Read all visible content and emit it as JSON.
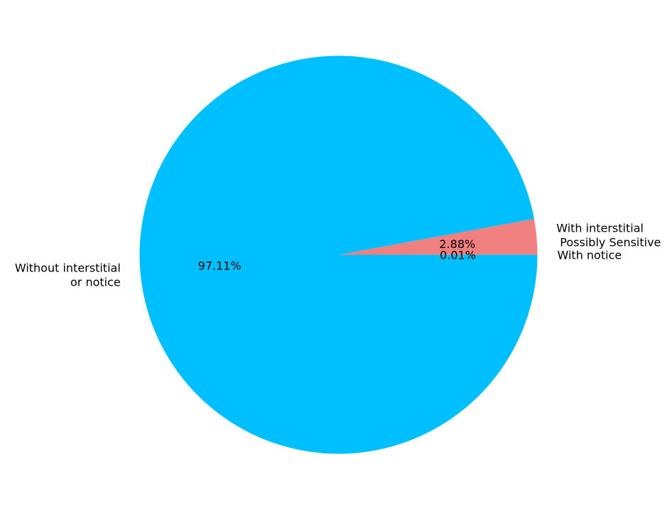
{
  "chart_data": {
    "type": "pie",
    "start_angle_deg": 0,
    "direction": "counterclockwise",
    "slices": [
      {
        "label": "With notice",
        "value": 0.01,
        "pct_label": "0.01%",
        "color": "#00BFFF"
      },
      {
        "label": "With interstitial\n Possibly Sensitive",
        "value": 2.88,
        "pct_label": "2.88%",
        "color": "#F08080"
      },
      {
        "label": "Without interstitial\nor notice",
        "value": 97.11,
        "pct_label": "97.11%",
        "color": "#00BFFF"
      }
    ]
  }
}
